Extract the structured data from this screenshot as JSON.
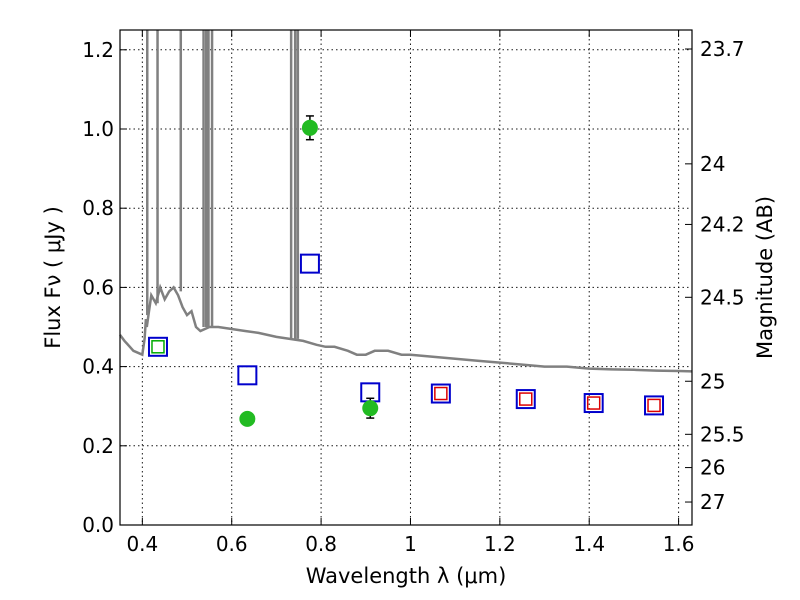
{
  "chart_data": {
    "type": "scatter",
    "title": "",
    "xlabel": "Wavelength  λ (μm)",
    "ylabel": "Flux  Fν  ( μJy )",
    "y2label": "Magnitude (AB)",
    "xlim": [
      0.35,
      1.63
    ],
    "ylim": [
      0.0,
      1.25
    ],
    "grid": true,
    "x_ticks": [
      0.4,
      0.6,
      0.8,
      1.0,
      1.2,
      1.4,
      1.6
    ],
    "x_tick_labels": [
      "0.4",
      "0.6",
      "0.8",
      "1",
      "1.2",
      "1.4",
      "1.6"
    ],
    "y_ticks": [
      0.0,
      0.2,
      0.4,
      0.6,
      0.8,
      1.0,
      1.2
    ],
    "y_tick_labels": [
      "0.0",
      "0.2",
      "0.4",
      "0.6",
      "0.8",
      "1.0",
      "1.2"
    ],
    "y2_ticks": [
      {
        "label": "23.7",
        "flux": 1.202
      },
      {
        "label": "24",
        "flux": 0.912
      },
      {
        "label": "24.2",
        "flux": 0.759
      },
      {
        "label": "24.5",
        "flux": 0.575
      },
      {
        "label": "25",
        "flux": 0.363
      },
      {
        "label": "25.5",
        "flux": 0.229
      },
      {
        "label": "26",
        "flux": 0.145
      },
      {
        "label": "27",
        "flux": 0.058
      }
    ],
    "series": [
      {
        "kind": "spectrum",
        "color": "#808080",
        "x": [
          0.35,
          0.36,
          0.38,
          0.4,
          0.405,
          0.408,
          0.41,
          0.415,
          0.42,
          0.43,
          0.44,
          0.45,
          0.46,
          0.47,
          0.48,
          0.49,
          0.5,
          0.51,
          0.52,
          0.53,
          0.55,
          0.57,
          0.6,
          0.63,
          0.66,
          0.7,
          0.73,
          0.76,
          0.79,
          0.81,
          0.83,
          0.86,
          0.88,
          0.9,
          0.92,
          0.95,
          0.98,
          1.0,
          1.05,
          1.1,
          1.15,
          1.2,
          1.25,
          1.3,
          1.35,
          1.4,
          1.45,
          1.5,
          1.55,
          1.6,
          1.63
        ],
        "y": [
          0.48,
          0.465,
          0.44,
          0.43,
          0.47,
          0.52,
          0.5,
          0.54,
          0.58,
          0.56,
          0.6,
          0.57,
          0.59,
          0.6,
          0.58,
          0.55,
          0.53,
          0.54,
          0.5,
          0.49,
          0.5,
          0.5,
          0.495,
          0.49,
          0.485,
          0.475,
          0.47,
          0.465,
          0.455,
          0.45,
          0.45,
          0.44,
          0.43,
          0.43,
          0.44,
          0.44,
          0.43,
          0.43,
          0.425,
          0.42,
          0.415,
          0.41,
          0.405,
          0.4,
          0.4,
          0.395,
          0.393,
          0.392,
          0.39,
          0.389,
          0.388
        ]
      },
      {
        "kind": "emission-lines",
        "color": "#808080",
        "x": [
          0.411,
          0.434,
          0.486,
          0.537,
          0.543,
          0.548,
          0.556,
          0.733,
          0.742,
          0.748
        ],
        "base": [
          0.53,
          0.56,
          0.59,
          0.5,
          0.5,
          0.5,
          0.5,
          0.47,
          0.47,
          0.47
        ]
      },
      {
        "kind": "model-squares",
        "color": "#0000cc",
        "x": [
          0.435,
          0.635,
          0.775,
          0.91,
          1.068,
          1.258,
          1.41,
          1.545
        ],
        "y": [
          0.45,
          0.378,
          0.66,
          0.335,
          0.332,
          0.318,
          0.308,
          0.302
        ]
      },
      {
        "kind": "observed-squares-green",
        "color": "#00aa00",
        "x": [
          0.435
        ],
        "y": [
          0.45
        ]
      },
      {
        "kind": "observed-squares-red",
        "color": "#dd0000",
        "x": [
          1.068,
          1.258,
          1.41,
          1.545
        ],
        "y": [
          0.332,
          0.318,
          0.308,
          0.302
        ]
      },
      {
        "kind": "detections",
        "color": "#22bb22",
        "x": [
          0.635,
          0.775,
          0.91
        ],
        "y": [
          0.268,
          1.003,
          0.295
        ],
        "err": [
          0.01,
          0.03,
          0.025
        ]
      }
    ]
  }
}
